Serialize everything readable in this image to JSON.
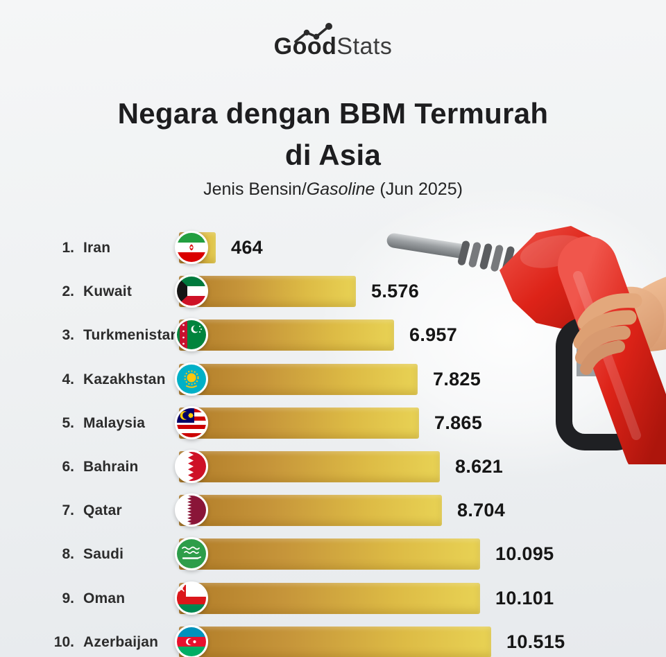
{
  "brand": {
    "name_bold": "Good",
    "name_light": "Stats"
  },
  "title": {
    "line1": "Negara dengan BBM Termurah",
    "line2": "di Asia"
  },
  "subtitle": {
    "prefix": "Jenis Bensin/",
    "italic": "Gasoline",
    "suffix": " (Jun 2025)"
  },
  "colors": {
    "bar_gradient_start": "#b07b28",
    "bar_gradient_end": "#e8d254",
    "background": "#eef0f2",
    "text_dark": "#1d1d1f",
    "nozzle_red": "#dd2318"
  },
  "chart_data": {
    "type": "bar",
    "orientation": "horizontal",
    "title": "Negara dengan BBM Termurah di Asia",
    "subtitle": "Jenis Bensin/Gasoline (Jun 2025)",
    "legend": "none",
    "grid": false,
    "categories": [
      "Iran",
      "Kuwait",
      "Turkmenistan",
      "Kazakhstan",
      "Malaysia",
      "Bahrain",
      "Qatar",
      "Saudi",
      "Oman",
      "Azerbaijan"
    ],
    "values": [
      464,
      5576,
      6957,
      7825,
      7865,
      8621,
      8704,
      10095,
      10101,
      10515
    ],
    "rows": [
      {
        "rank": "1.",
        "country": "Iran",
        "value": 464,
        "value_label": "464"
      },
      {
        "rank": "2.",
        "country": "Kuwait",
        "value": 5576,
        "value_label": "5.576"
      },
      {
        "rank": "3.",
        "country": "Turkmenistan",
        "value": 6957,
        "value_label": "6.957"
      },
      {
        "rank": "4.",
        "country": "Kazakhstan",
        "value": 7825,
        "value_label": "7.825"
      },
      {
        "rank": "5.",
        "country": "Malaysia",
        "value": 7865,
        "value_label": "7.865"
      },
      {
        "rank": "6.",
        "country": "Bahrain",
        "value": 8621,
        "value_label": "8.621"
      },
      {
        "rank": "7.",
        "country": "Qatar",
        "value": 8704,
        "value_label": "8.704"
      },
      {
        "rank": "8.",
        "country": "Saudi",
        "value": 10095,
        "value_label": "10.095"
      },
      {
        "rank": "9.",
        "country": "Oman",
        "value": 10101,
        "value_label": "10.101"
      },
      {
        "rank": "10.",
        "country": "Azerbaijan",
        "value": 10515,
        "value_label": "10.515"
      }
    ]
  }
}
